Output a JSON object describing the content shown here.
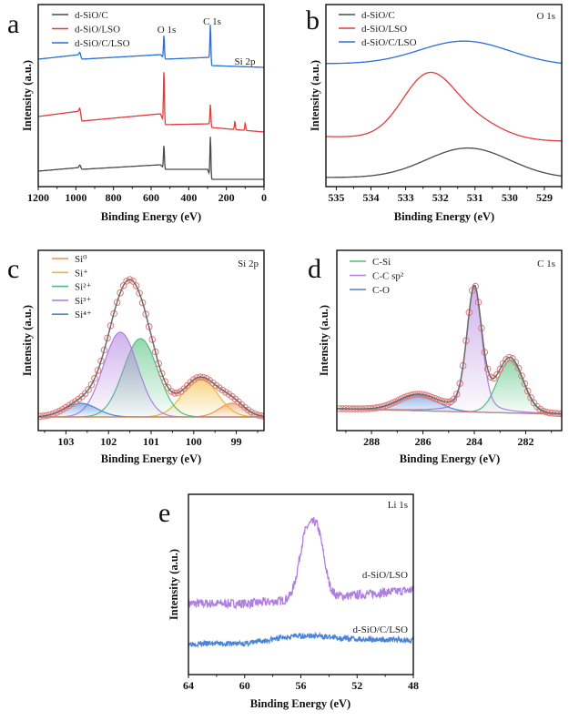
{
  "chart_data": [
    {
      "id": "a",
      "type": "line",
      "panel_label": "a",
      "title": "",
      "xlabel": "Binding Energy (eV)",
      "ylabel": "Intensity (a.u.)",
      "xlim": [
        1200,
        0
      ],
      "ylim": [
        0,
        10
      ],
      "xticks": [
        1200,
        1000,
        800,
        600,
        400,
        200,
        0
      ],
      "minor_step": 100,
      "legend": "top-left",
      "annotations": [
        {
          "text": "O 1s",
          "x": 532
        },
        {
          "text": "C 1s",
          "x": 285
        },
        {
          "text": "Si 2p",
          "x": 100
        }
      ],
      "series": [
        {
          "name": "d-SiO/C",
          "color": "#4a4a4a",
          "baseline": [
            [
              1200,
              0.85
            ],
            [
              980,
              1.05
            ],
            [
              968,
              0.95
            ],
            [
              550,
              1.2
            ],
            [
              528,
              0.95
            ],
            [
              300,
              0.95
            ],
            [
              282,
              0.4
            ],
            [
              0,
              0.4
            ]
          ],
          "peaks": [
            {
              "center": 978,
              "height": 0.15,
              "sigma": 4
            },
            {
              "center": 532,
              "height": 1.3,
              "sigma": 2.5
            },
            {
              "center": 285,
              "height": 2.3,
              "sigma": 2.5
            }
          ]
        },
        {
          "name": "d-SiO/LSO",
          "color": "#e03c3c",
          "baseline": [
            [
              1200,
              3.85
            ],
            [
              980,
              4.15
            ],
            [
              968,
              3.6
            ],
            [
              550,
              4.0
            ],
            [
              528,
              3.4
            ],
            [
              290,
              3.45
            ],
            [
              282,
              3.25
            ],
            [
              0,
              3.0
            ]
          ],
          "peaks": [
            {
              "center": 978,
              "height": 0.2,
              "sigma": 4
            },
            {
              "center": 532,
              "height": 2.9,
              "sigma": 2.5
            },
            {
              "center": 285,
              "height": 1.2,
              "sigma": 2.5
            },
            {
              "center": 155,
              "height": 0.45,
              "sigma": 2.5
            },
            {
              "center": 100,
              "height": 0.4,
              "sigma": 2.5
            }
          ]
        },
        {
          "name": "d-SiO/C/LSO",
          "color": "#2a6fd6",
          "baseline": [
            [
              1200,
              7.0
            ],
            [
              980,
              7.25
            ],
            [
              968,
              7.0
            ],
            [
              550,
              7.25
            ],
            [
              528,
              7.0
            ],
            [
              290,
              7.1
            ],
            [
              282,
              6.65
            ],
            [
              0,
              6.55
            ]
          ],
          "peaks": [
            {
              "center": 978,
              "height": 0.15,
              "sigma": 4
            },
            {
              "center": 532,
              "height": 1.3,
              "sigma": 2.5
            },
            {
              "center": 285,
              "height": 2.1,
              "sigma": 2.5
            }
          ]
        }
      ]
    },
    {
      "id": "b",
      "type": "line",
      "panel_label": "b",
      "title": "O 1s",
      "xlabel": "Binding Energy (eV)",
      "ylabel": "Intensity (a.u.)",
      "xlim": [
        535.3,
        528.5
      ],
      "ylim": [
        0,
        10
      ],
      "xticks": [
        535,
        534,
        533,
        532,
        531,
        530,
        529
      ],
      "minor_step": 0.5,
      "legend": "top-left",
      "series": [
        {
          "name": "d-SiO/C",
          "color": "#4a4a4a",
          "baseline": [
            [
              535.3,
              0.5
            ],
            [
              528.5,
              0.45
            ]
          ],
          "peaks": [
            {
              "center": 531.2,
              "height": 1.65,
              "sigma": 1.2
            }
          ]
        },
        {
          "name": "d-SiO/LSO",
          "color": "#e03c3c",
          "baseline": [
            [
              535.3,
              2.75
            ],
            [
              528.5,
              2.5
            ]
          ],
          "peaks": [
            {
              "center": 532.35,
              "height": 3.4,
              "sigma": 0.75
            },
            {
              "center": 531.0,
              "height": 0.9,
              "sigma": 0.8
            }
          ]
        },
        {
          "name": "d-SiO/C/LSO",
          "color": "#2a6fd6",
          "baseline": [
            [
              535.3,
              6.75
            ],
            [
              528.5,
              6.65
            ]
          ],
          "peaks": [
            {
              "center": 531.3,
              "height": 1.3,
              "sigma": 1.3
            }
          ]
        }
      ]
    },
    {
      "id": "c",
      "type": "line",
      "panel_label": "c",
      "title": "Si 2p",
      "xlabel": "Binding Energy (eV)",
      "ylabel": "Intensity (a.u.)",
      "xlim": [
        103.65,
        98.35
      ],
      "ylim": [
        -15,
        183
      ],
      "xticks": [
        103,
        102,
        101,
        100,
        99
      ],
      "minor_step": 0.5,
      "legend": "top-left",
      "fit_color": "#6b6b6b",
      "points_color": "#e07a7a",
      "point_step": 0.075,
      "baseline_color": "#c98c6a",
      "components": [
        {
          "name": "Si⁰",
          "color": "#e8935a",
          "center": 99.1,
          "height": 15,
          "sigma": 0.3
        },
        {
          "name": "Si⁺",
          "color": "#f2b52a",
          "center": 99.85,
          "height": 43,
          "sigma": 0.4
        },
        {
          "name": "Si²⁺",
          "color": "#4cbf7a",
          "center": 101.25,
          "height": 86,
          "sigma": 0.4
        },
        {
          "name": "Si³⁺",
          "color": "#b07fe0",
          "center": 101.72,
          "height": 93,
          "sigma": 0.4
        },
        {
          "name": "Si⁴⁺",
          "color": "#4a84d8",
          "center": 102.65,
          "height": 15,
          "sigma": 0.38
        }
      ]
    },
    {
      "id": "d",
      "type": "line",
      "panel_label": "d",
      "title": "C 1s",
      "xlabel": "Binding Energy (eV)",
      "ylabel": "Intensity (a.u.)",
      "xlim": [
        289.35,
        280.6
      ],
      "ylim": [
        -23,
        175
      ],
      "xticks": [
        288,
        286,
        284,
        282
      ],
      "minor_step": 1,
      "legend": "top-left",
      "fit_color": "#6b6b6b",
      "points_color": "#e07a7a",
      "point_step": 0.12,
      "baseline_color": "#c98080",
      "baseline": [
        [
          289.35,
          1
        ],
        [
          280.6,
          -5
        ]
      ],
      "components": [
        {
          "name": "C-Si",
          "color": "#4cbf7a",
          "center": 282.6,
          "height": 58,
          "sigma": 0.5
        },
        {
          "name": "C-C sp²",
          "color": "#b07fe0",
          "center": 284.0,
          "height": 138,
          "sigma": 0.3,
          "eta": 0.35
        },
        {
          "name": "C-O",
          "color": "#4a84d8",
          "center": 286.2,
          "height": 17,
          "sigma": 0.75
        }
      ]
    },
    {
      "id": "e",
      "type": "line",
      "panel_label": "e",
      "title": "Li 1s",
      "xlabel": "Binding Energy (eV)",
      "ylabel": "Intensity (a.u.)",
      "xlim": [
        64,
        48
      ],
      "ylim": [
        0,
        198
      ],
      "xticks": [
        64,
        60,
        56,
        52,
        48
      ],
      "minor_step": 2,
      "legend": "inline-labels",
      "series": [
        {
          "name": "d-SiO/LSO",
          "color": "#b07fe0",
          "noise": 5,
          "seed": 7,
          "baseline": [
            [
              64,
              78
            ],
            [
              60,
              78
            ],
            [
              56,
              82
            ],
            [
              53,
              86
            ],
            [
              48,
              93
            ]
          ],
          "peaks": [
            {
              "center": 55.7,
              "height": 50,
              "sigma": 0.45
            },
            {
              "center": 54.8,
              "height": 55,
              "sigma": 0.45
            },
            {
              "center": 55.25,
              "height": 20,
              "sigma": 0.8
            }
          ]
        },
        {
          "name": "d-SiO/C/LSO",
          "color": "#4a84d8",
          "noise": 3,
          "seed": 3,
          "baseline": [
            [
              64,
              34
            ],
            [
              60,
              34
            ],
            [
              57,
              40
            ],
            [
              48,
              38
            ]
          ],
          "peaks": [
            {
              "center": 55.5,
              "height": 3,
              "sigma": 1.5
            }
          ]
        }
      ]
    }
  ]
}
